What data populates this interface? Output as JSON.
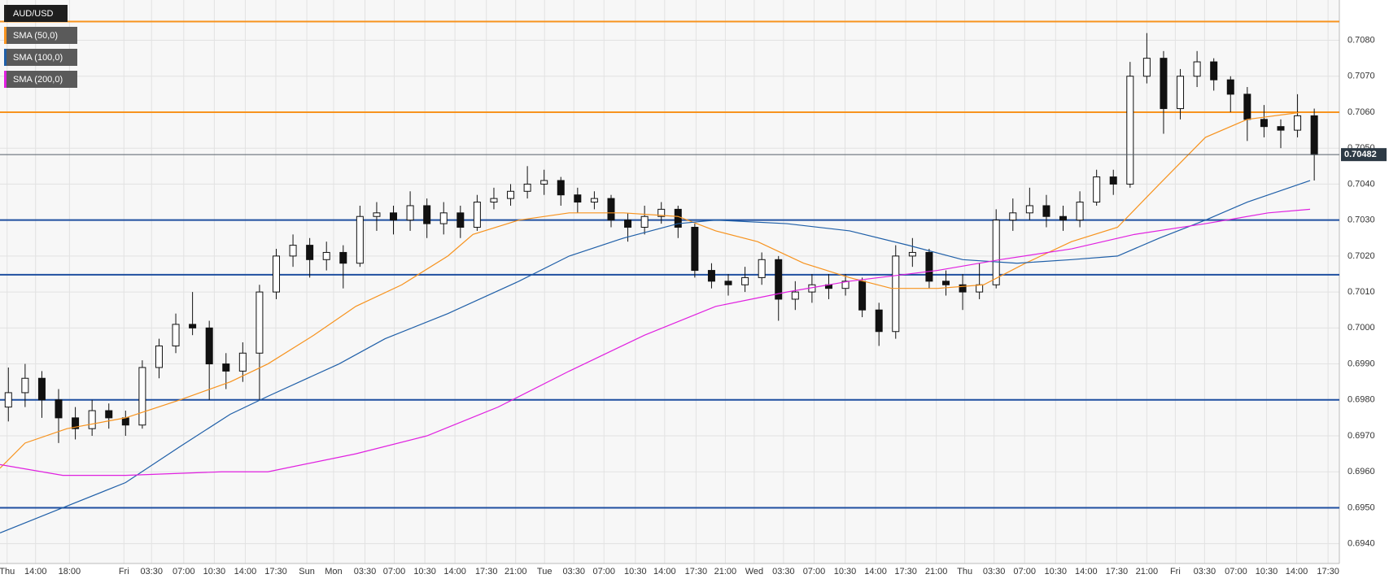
{
  "chart_data": {
    "type": "candlestick",
    "name": "AUD/USD",
    "up_color": "#ffffff",
    "down_color": "#111111",
    "x": [
      2,
      6,
      10,
      14,
      18,
      22,
      26,
      30,
      34,
      38,
      42,
      46,
      50,
      54,
      58,
      62,
      66,
      70,
      74,
      78,
      82,
      86,
      90,
      94,
      98,
      102,
      106,
      110,
      114,
      118,
      122,
      126,
      130,
      134,
      138,
      142,
      146,
      150,
      154,
      158,
      162,
      166,
      170,
      174,
      178,
      182,
      186,
      190,
      194,
      198,
      202,
      206,
      210,
      214,
      218,
      222,
      226,
      230,
      234,
      238,
      242,
      246,
      250,
      254,
      258,
      262,
      266,
      270,
      274,
      278,
      282,
      286,
      290,
      294,
      298,
      302,
      306,
      310,
      314
    ],
    "open": [
      0.6978,
      0.6982,
      0.6986,
      0.698,
      0.6975,
      0.6972,
      0.6977,
      0.6975,
      0.6973,
      0.6989,
      0.6995,
      0.7001,
      0.7,
      0.699,
      0.6988,
      0.6993,
      0.701,
      0.702,
      0.7023,
      0.7019,
      0.7021,
      0.7018,
      0.7031,
      0.7032,
      0.703,
      0.7034,
      0.7029,
      0.7032,
      0.7028,
      0.7035,
      0.7036,
      0.7038,
      0.704,
      0.7041,
      0.7037,
      0.7035,
      0.7036,
      0.703,
      0.7028,
      0.7031,
      0.7033,
      0.7028,
      0.7016,
      0.7013,
      0.7012,
      0.7014,
      0.7019,
      0.7008,
      0.701,
      0.7012,
      0.7011,
      0.7013,
      0.7005,
      0.6999,
      0.702,
      0.7021,
      0.7013,
      0.7012,
      0.701,
      0.7012,
      0.703,
      0.7032,
      0.7034,
      0.7031,
      0.703,
      0.7035,
      0.7042,
      0.704,
      0.707,
      0.7075,
      0.7061,
      0.707,
      0.7074,
      0.7069,
      0.7065,
      0.7058,
      0.7056,
      0.7055,
      0.7059
    ],
    "high": [
      0.6989,
      0.699,
      0.6988,
      0.6983,
      0.6978,
      0.698,
      0.6979,
      0.6977,
      0.6991,
      0.6997,
      0.7004,
      0.701,
      0.7002,
      0.6993,
      0.6996,
      0.7012,
      0.7022,
      0.7026,
      0.7025,
      0.7024,
      0.7023,
      0.7034,
      0.7035,
      0.7034,
      0.7038,
      0.7036,
      0.7035,
      0.7034,
      0.7037,
      0.7039,
      0.704,
      0.7045,
      0.7044,
      0.7042,
      0.7039,
      0.7038,
      0.7037,
      0.7032,
      0.7034,
      0.7035,
      0.7034,
      0.7029,
      0.7018,
      0.7015,
      0.7017,
      0.7021,
      0.702,
      0.7013,
      0.7015,
      0.7015,
      0.7015,
      0.7014,
      0.7007,
      0.7023,
      0.7025,
      0.7022,
      0.7016,
      0.7015,
      0.7018,
      0.7033,
      0.7036,
      0.7039,
      0.7037,
      0.7034,
      0.7038,
      0.7044,
      0.7044,
      0.7074,
      0.7082,
      0.7077,
      0.7072,
      0.7077,
      0.7075,
      0.707,
      0.7067,
      0.7062,
      0.7058,
      0.7065,
      0.7061
    ],
    "low": [
      0.6974,
      0.6978,
      0.6975,
      0.6968,
      0.6969,
      0.697,
      0.6972,
      0.697,
      0.6972,
      0.6986,
      0.6993,
      0.6998,
      0.698,
      0.6983,
      0.6985,
      0.698,
      0.7008,
      0.7017,
      0.7014,
      0.7016,
      0.7011,
      0.7017,
      0.7027,
      0.7026,
      0.7027,
      0.7025,
      0.7026,
      0.7025,
      0.7027,
      0.7033,
      0.7034,
      0.7036,
      0.7037,
      0.7034,
      0.7032,
      0.7033,
      0.7028,
      0.7024,
      0.7026,
      0.7029,
      0.7025,
      0.7014,
      0.7011,
      0.7009,
      0.701,
      0.7012,
      0.7002,
      0.7005,
      0.7007,
      0.7008,
      0.7009,
      0.7003,
      0.6995,
      0.6997,
      0.7017,
      0.7011,
      0.7009,
      0.7005,
      0.7008,
      0.7011,
      0.7027,
      0.703,
      0.7028,
      0.7027,
      0.7028,
      0.7034,
      0.7037,
      0.7039,
      0.7068,
      0.7054,
      0.7058,
      0.7067,
      0.7066,
      0.706,
      0.7052,
      0.7053,
      0.705,
      0.7053,
      0.7041
    ],
    "close": [
      0.6982,
      0.6986,
      0.698,
      0.6975,
      0.6972,
      0.6977,
      0.6975,
      0.6973,
      0.6989,
      0.6995,
      0.7001,
      0.7,
      0.699,
      0.6988,
      0.6993,
      0.701,
      0.702,
      0.7023,
      0.7019,
      0.7021,
      0.7018,
      0.7031,
      0.7032,
      0.703,
      0.7034,
      0.7029,
      0.7032,
      0.7028,
      0.7035,
      0.7036,
      0.7038,
      0.704,
      0.7041,
      0.7037,
      0.7035,
      0.7036,
      0.703,
      0.7028,
      0.7031,
      0.7033,
      0.7028,
      0.7016,
      0.7013,
      0.7012,
      0.7014,
      0.7019,
      0.7008,
      0.701,
      0.7012,
      0.7011,
      0.7013,
      0.7005,
      0.6999,
      0.702,
      0.7021,
      0.7013,
      0.7012,
      0.701,
      0.7012,
      0.703,
      0.7032,
      0.7034,
      0.7031,
      0.703,
      0.7035,
      0.7042,
      0.704,
      0.707,
      0.7075,
      0.7061,
      0.707,
      0.7074,
      0.7069,
      0.7065,
      0.7058,
      0.7056,
      0.7055,
      0.7059,
      0.70482
    ],
    "series": [
      {
        "name": "SMA (50,0)",
        "color": "#f7931e",
        "x": [
          0,
          6,
          16,
          30,
          43,
          55,
          64,
          75,
          85,
          96,
          107,
          113,
          124,
          136,
          149,
          162,
          171,
          181,
          192,
          203,
          213,
          224,
          235,
          245,
          256,
          267,
          277,
          288,
          298,
          311
        ],
        "values": [
          0.6961,
          0.6968,
          0.6972,
          0.6975,
          0.698,
          0.6985,
          0.699,
          0.6998,
          0.7006,
          0.7012,
          0.702,
          0.7026,
          0.703,
          0.7032,
          0.7032,
          0.7031,
          0.7027,
          0.7024,
          0.7018,
          0.7014,
          0.7011,
          0.7011,
          0.7012,
          0.7018,
          0.7024,
          0.7028,
          0.704,
          0.7053,
          0.7058,
          0.706
        ]
      },
      {
        "name": "SMA (100,0)",
        "color": "#1f5fa8",
        "x": [
          0,
          15,
          30,
          43,
          55,
          64,
          81,
          92,
          107,
          124,
          136,
          149,
          162,
          171,
          188,
          203,
          217,
          230,
          243,
          256,
          267,
          277,
          288,
          298,
          313
        ],
        "values": [
          0.6943,
          0.695,
          0.6957,
          0.6967,
          0.6976,
          0.6981,
          0.699,
          0.6997,
          0.7004,
          0.7013,
          0.702,
          0.7025,
          0.7029,
          0.703,
          0.7029,
          0.7027,
          0.7023,
          0.7019,
          0.7018,
          0.7019,
          0.702,
          0.7025,
          0.703,
          0.7035,
          0.7041
        ]
      },
      {
        "name": "SMA (200,0)",
        "color": "#e020e0",
        "x": [
          0,
          15,
          30,
          53,
          64,
          85,
          102,
          119,
          136,
          154,
          171,
          188,
          203,
          224,
          239,
          256,
          271,
          288,
          303,
          313
        ],
        "values": [
          0.6962,
          0.6959,
          0.6959,
          0.696,
          0.696,
          0.6965,
          0.697,
          0.6978,
          0.6988,
          0.6998,
          0.7006,
          0.701,
          0.7013,
          0.7016,
          0.7019,
          0.7022,
          0.7026,
          0.7029,
          0.7032,
          0.7033
        ]
      }
    ],
    "levels": [
      {
        "value": 0.70852,
        "color": "#f7931e"
      },
      {
        "value": 0.706,
        "color": "#f7931e"
      },
      {
        "value": 0.703,
        "color": "#1f4fa0"
      },
      {
        "value": 0.70148,
        "color": "#1f4fa0"
      },
      {
        "value": 0.698,
        "color": "#1f4fa0"
      },
      {
        "value": 0.695,
        "color": "#1f4fa0"
      }
    ],
    "last_price": 0.70482,
    "ylim": [
      0.69345,
      0.70912
    ],
    "yticks": [
      {
        "value": 0.694,
        "label": "0.6940"
      },
      {
        "value": 0.695,
        "label": "0.6950"
      },
      {
        "value": 0.696,
        "label": "0.6960"
      },
      {
        "value": 0.697,
        "label": "0.6970"
      },
      {
        "value": 0.698,
        "label": "0.6980"
      },
      {
        "value": 0.699,
        "label": "0.6990"
      },
      {
        "value": 0.7,
        "label": "0.7000"
      },
      {
        "value": 0.701,
        "label": "0.7010"
      },
      {
        "value": 0.702,
        "label": "0.7020"
      },
      {
        "value": 0.703,
        "label": "0.7030"
      },
      {
        "value": 0.704,
        "label": "0.7040"
      },
      {
        "value": 0.705,
        "label": "0.7050"
      },
      {
        "value": 0.706,
        "label": "0.7060"
      },
      {
        "value": 0.707,
        "label": "0.7070"
      },
      {
        "value": 0.708,
        "label": "0.7080"
      }
    ],
    "xlim": [
      0,
      320
    ],
    "xticks": [
      {
        "value": 1.7,
        "label": "Thu"
      },
      {
        "value": 8.5,
        "label": "14:00"
      },
      {
        "value": 16.6,
        "label": "18:00"
      },
      {
        "value": 29.6,
        "label": "Fri"
      },
      {
        "value": 36.2,
        "label": "03:30"
      },
      {
        "value": 43.9,
        "label": "07:00"
      },
      {
        "value": 51.2,
        "label": "10:30"
      },
      {
        "value": 58.6,
        "label": "14:00"
      },
      {
        "value": 65.9,
        "label": "17:30"
      },
      {
        "value": 73.3,
        "label": "Sun"
      },
      {
        "value": 79.7,
        "label": "Mon"
      },
      {
        "value": 87.2,
        "label": "03:30"
      },
      {
        "value": 94.2,
        "label": "07:00"
      },
      {
        "value": 101.5,
        "label": "10:30"
      },
      {
        "value": 108.7,
        "label": "14:00"
      },
      {
        "value": 116.2,
        "label": "17:30"
      },
      {
        "value": 123.2,
        "label": "21:00"
      },
      {
        "value": 130.1,
        "label": "Tue"
      },
      {
        "value": 137.1,
        "label": "03:30"
      },
      {
        "value": 144.3,
        "label": "07:00"
      },
      {
        "value": 151.8,
        "label": "10:30"
      },
      {
        "value": 158.8,
        "label": "14:00"
      },
      {
        "value": 166.3,
        "label": "17:30"
      },
      {
        "value": 173.3,
        "label": "21:00"
      },
      {
        "value": 180.2,
        "label": "Wed"
      },
      {
        "value": 187.2,
        "label": "03:30"
      },
      {
        "value": 194.5,
        "label": "07:00"
      },
      {
        "value": 201.9,
        "label": "10:30"
      },
      {
        "value": 209.2,
        "label": "14:00"
      },
      {
        "value": 216.4,
        "label": "17:30"
      },
      {
        "value": 223.7,
        "label": "21:00"
      },
      {
        "value": 230.5,
        "label": "Thu"
      },
      {
        "value": 237.5,
        "label": "03:30"
      },
      {
        "value": 244.8,
        "label": "07:00"
      },
      {
        "value": 252.2,
        "label": "10:30"
      },
      {
        "value": 259.5,
        "label": "14:00"
      },
      {
        "value": 266.8,
        "label": "17:30"
      },
      {
        "value": 274,
        "label": "21:00"
      },
      {
        "value": 280.8,
        "label": "Fri"
      },
      {
        "value": 287.8,
        "label": "03:30"
      },
      {
        "value": 295.3,
        "label": "07:00"
      },
      {
        "value": 302.6,
        "label": "10:30"
      },
      {
        "value": 309.8,
        "label": "14:00"
      },
      {
        "value": 317.3,
        "label": "17:30"
      }
    ],
    "grid": true
  }
}
